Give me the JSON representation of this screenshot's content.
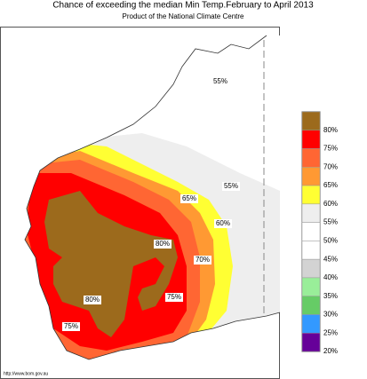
{
  "title": "Chance of exceeding the median Min Temp.February to April 2013",
  "subtitle": "Product of the National Climate Centre",
  "map_labels": [
    "55%",
    "55%",
    "65%",
    "60%",
    "80%",
    "70%",
    "80%",
    "75%",
    "75%"
  ],
  "legend": [
    {
      "label": "80%",
      "color": "#9c6a1c"
    },
    {
      "label": "75%",
      "color": "#ff0000"
    },
    {
      "label": "70%",
      "color": "#ff6633"
    },
    {
      "label": "65%",
      "color": "#ff9933"
    },
    {
      "label": "60%",
      "color": "#ffff33"
    },
    {
      "label": "55%",
      "color": "#eeeeee"
    },
    {
      "label": "50%",
      "color": "#ffffff"
    },
    {
      "label": "45%",
      "color": "#ffffff"
    },
    {
      "label": "40%",
      "color": "#d3d3d3"
    },
    {
      "label": "35%",
      "color": "#99ee99"
    },
    {
      "label": "30%",
      "color": "#66cc66"
    },
    {
      "label": "25%",
      "color": "#3399ff"
    },
    {
      "label": "20%",
      "color": "#660099"
    }
  ],
  "footer": "http://www.bom.gov.au"
}
